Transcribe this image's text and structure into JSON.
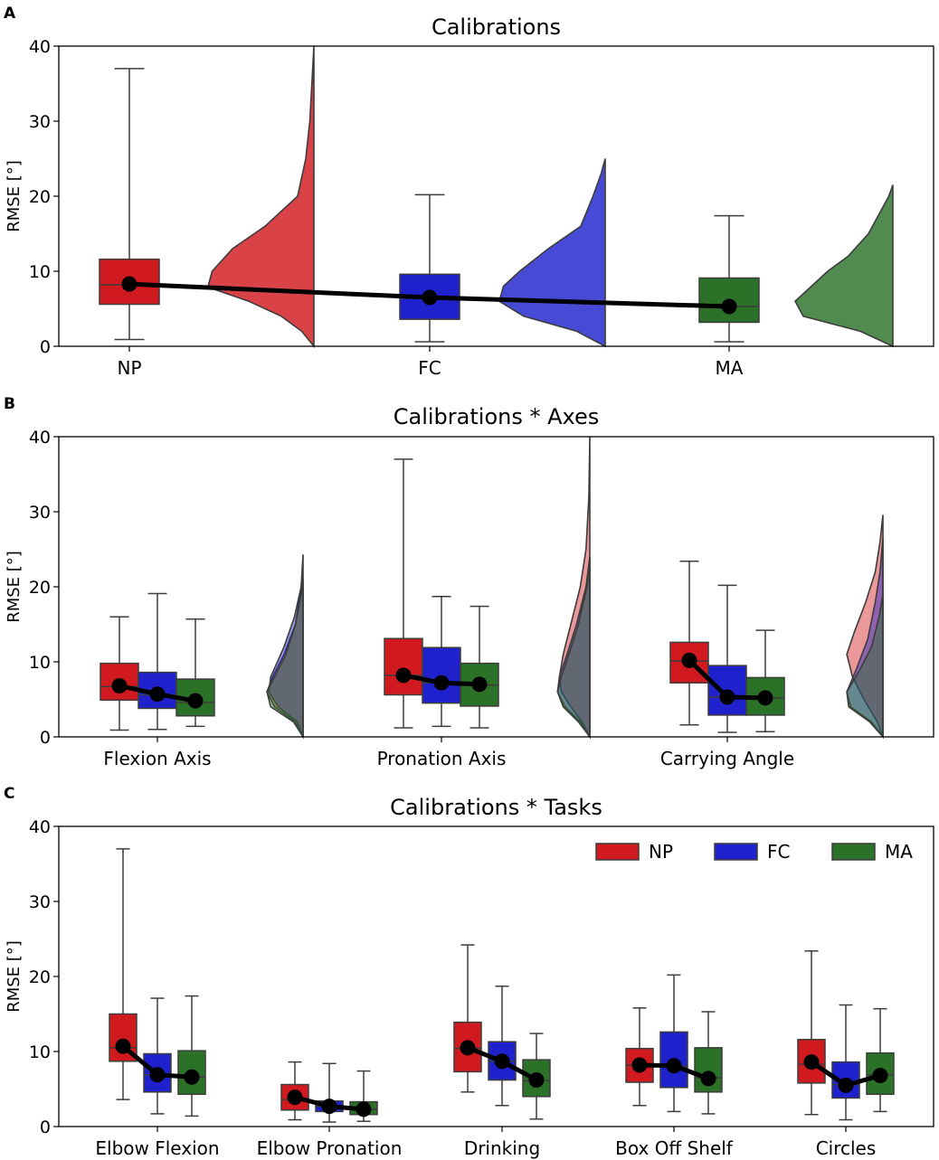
{
  "colors": {
    "NP": "#d11a1f",
    "FC": "#1f22cc",
    "MA": "#2b7128",
    "outline": "#3c3c3c",
    "mean_line": "#000000"
  },
  "chart_data": [
    {
      "panel": "A",
      "type": "box+violin",
      "title": "Calibrations",
      "ylabel": "RMSE [°]",
      "ylim": [
        0,
        40
      ],
      "yticks": [
        0,
        10,
        20,
        30,
        40
      ],
      "categories": [
        "NP",
        "FC",
        "MA"
      ],
      "groups": [
        {
          "category": "NP",
          "series": [
            {
              "name": "NP",
              "whislo": 0.9,
              "q1": 5.6,
              "median": 8.2,
              "q3": 11.6,
              "whishi": 37.0,
              "mean": 8.3
            }
          ],
          "violins": [
            {
              "name": "NP",
              "profile": [
                [
                  0,
                  0
                ],
                [
                  2,
                  3
                ],
                [
                  4,
                  8
                ],
                [
                  6,
                  16
                ],
                [
                  7.5,
                  24
                ],
                [
                  8,
                  26
                ],
                [
                  10,
                  25
                ],
                [
                  13,
                  20
                ],
                [
                  16,
                  12
                ],
                [
                  20,
                  4
                ],
                [
                  25,
                  2
                ],
                [
                  30,
                  1
                ],
                [
                  35,
                  0.5
                ],
                [
                  40,
                  0
                ]
              ]
            }
          ]
        },
        {
          "category": "FC",
          "series": [
            {
              "name": "FC",
              "whislo": 0.6,
              "q1": 3.6,
              "median": 6.4,
              "q3": 9.6,
              "whishi": 20.2,
              "mean": 6.5
            }
          ],
          "violins": [
            {
              "name": "FC",
              "profile": [
                [
                  0,
                  0
                ],
                [
                  2,
                  7
                ],
                [
                  4,
                  20
                ],
                [
                  6,
                  26
                ],
                [
                  8,
                  25
                ],
                [
                  10,
                  21
                ],
                [
                  13,
                  14
                ],
                [
                  16,
                  6
                ],
                [
                  20,
                  3
                ],
                [
                  23,
                  1
                ],
                [
                  25,
                  0
                ]
              ]
            }
          ]
        },
        {
          "category": "MA",
          "series": [
            {
              "name": "MA",
              "whislo": 0.6,
              "q1": 3.2,
              "median": 5.3,
              "q3": 9.1,
              "whishi": 17.4,
              "mean": 5.3
            }
          ],
          "violins": [
            {
              "name": "MA",
              "profile": [
                [
                  0,
                  0
                ],
                [
                  2,
                  8
                ],
                [
                  4,
                  22
                ],
                [
                  6,
                  24
                ],
                [
                  8,
                  20
                ],
                [
                  10,
                  16
                ],
                [
                  12,
                  11
                ],
                [
                  15,
                  6
                ],
                [
                  18,
                  3
                ],
                [
                  20,
                  1
                ],
                [
                  21.5,
                  0
                ]
              ]
            }
          ]
        }
      ]
    },
    {
      "panel": "B",
      "type": "box+violin",
      "title": "Calibrations * Axes",
      "ylabel": "RMSE [°]",
      "ylim": [
        0,
        40
      ],
      "yticks": [
        0,
        10,
        20,
        30,
        40
      ],
      "categories": [
        "Flexion Axis",
        "Pronation Axis",
        "Carrying Angle"
      ],
      "groups": [
        {
          "category": "Flexion Axis",
          "series": [
            {
              "name": "NP",
              "whislo": 0.9,
              "q1": 4.9,
              "median": 6.7,
              "q3": 9.8,
              "whishi": 16.0,
              "mean": 6.8
            },
            {
              "name": "FC",
              "whislo": 1.0,
              "q1": 3.8,
              "median": 5.6,
              "q3": 8.6,
              "whishi": 19.1,
              "mean": 5.7
            },
            {
              "name": "MA",
              "whislo": 1.4,
              "q1": 2.8,
              "median": 4.6,
              "q3": 7.7,
              "whishi": 15.7,
              "mean": 4.8
            }
          ],
          "violins": [
            {
              "name": "NP",
              "profile": [
                [
                  0,
                  0
                ],
                [
                  2,
                  8
                ],
                [
                  4,
                  30
                ],
                [
                  6,
                  38
                ],
                [
                  8,
                  32
                ],
                [
                  11,
                  20
                ],
                [
                  15,
                  8
                ],
                [
                  20,
                  2
                ],
                [
                  24.3,
                  0
                ]
              ]
            },
            {
              "name": "FC",
              "profile": [
                [
                  0,
                  0
                ],
                [
                  2,
                  6
                ],
                [
                  4,
                  26
                ],
                [
                  6,
                  36
                ],
                [
                  8,
                  34
                ],
                [
                  12,
                  20
                ],
                [
                  16,
                  9
                ],
                [
                  20,
                  2
                ],
                [
                  21,
                  0
                ]
              ]
            },
            {
              "name": "MA",
              "profile": [
                [
                  0,
                  0
                ],
                [
                  2,
                  10
                ],
                [
                  4,
                  34
                ],
                [
                  6,
                  38
                ],
                [
                  8,
                  30
                ],
                [
                  11,
                  18
                ],
                [
                  15,
                  8
                ],
                [
                  19,
                  2
                ],
                [
                  20.8,
                  0
                ]
              ]
            }
          ]
        },
        {
          "category": "Pronation Axis",
          "series": [
            {
              "name": "NP",
              "whislo": 1.2,
              "q1": 5.6,
              "median": 8.2,
              "q3": 13.1,
              "whishi": 37.0,
              "mean": 8.2
            },
            {
              "name": "FC",
              "whislo": 1.4,
              "q1": 4.5,
              "median": 7.2,
              "q3": 11.9,
              "whishi": 18.7,
              "mean": 7.2
            },
            {
              "name": "MA",
              "whislo": 1.2,
              "q1": 4.1,
              "median": 6.9,
              "q3": 9.8,
              "whishi": 17.4,
              "mean": 7.0
            }
          ],
          "violins": [
            {
              "name": "NP",
              "profile": [
                [
                  0,
                  0
                ],
                [
                  2,
                  8
                ],
                [
                  4,
                  20
                ],
                [
                  6,
                  30
                ],
                [
                  8,
                  32
                ],
                [
                  11,
                  28
                ],
                [
                  15,
                  20
                ],
                [
                  20,
                  10
                ],
                [
                  25,
                  4
                ],
                [
                  32,
                  1
                ],
                [
                  40,
                  0
                ]
              ]
            },
            {
              "name": "FC",
              "profile": [
                [
                  0,
                  0
                ],
                [
                  2,
                  10
                ],
                [
                  4,
                  26
                ],
                [
                  6,
                  34
                ],
                [
                  8,
                  32
                ],
                [
                  11,
                  24
                ],
                [
                  15,
                  14
                ],
                [
                  20,
                  4
                ],
                [
                  24,
                  0
                ]
              ]
            },
            {
              "name": "MA",
              "profile": [
                [
                  0,
                  0
                ],
                [
                  2,
                  12
                ],
                [
                  4,
                  28
                ],
                [
                  6,
                  34
                ],
                [
                  8,
                  30
                ],
                [
                  11,
                  22
                ],
                [
                  15,
                  12
                ],
                [
                  20,
                  3
                ],
                [
                  24,
                  0
                ]
              ]
            }
          ]
        },
        {
          "category": "Carrying Angle",
          "series": [
            {
              "name": "NP",
              "whislo": 1.6,
              "q1": 7.2,
              "median": 10.1,
              "q3": 12.6,
              "whishi": 23.4,
              "mean": 10.2
            },
            {
              "name": "FC",
              "whislo": 0.6,
              "q1": 2.9,
              "median": 5.3,
              "q3": 9.5,
              "whishi": 20.2,
              "mean": 5.3
            },
            {
              "name": "MA",
              "whislo": 0.7,
              "q1": 2.9,
              "median": 5.2,
              "q3": 7.9,
              "whishi": 14.2,
              "mean": 5.2
            }
          ],
          "violins": [
            {
              "name": "NP",
              "profile": [
                [
                  0,
                  0
                ],
                [
                  2,
                  6
                ],
                [
                  5,
                  20
                ],
                [
                  8,
                  32
                ],
                [
                  11,
                  38
                ],
                [
                  14,
                  30
                ],
                [
                  18,
                  18
                ],
                [
                  22,
                  8
                ],
                [
                  26,
                  3
                ],
                [
                  29.6,
                  0
                ]
              ]
            },
            {
              "name": "FC",
              "profile": [
                [
                  0,
                  0
                ],
                [
                  2,
                  12
                ],
                [
                  4,
                  34
                ],
                [
                  6,
                  38
                ],
                [
                  9,
                  28
                ],
                [
                  13,
                  16
                ],
                [
                  18,
                  8
                ],
                [
                  22,
                  3
                ],
                [
                  26.5,
                  0
                ]
              ]
            },
            {
              "name": "MA",
              "profile": [
                [
                  0,
                  0
                ],
                [
                  2,
                  14
                ],
                [
                  4,
                  36
                ],
                [
                  6,
                  38
                ],
                [
                  9,
                  24
                ],
                [
                  12,
                  12
                ],
                [
                  16,
                  4
                ],
                [
                  19,
                  0
                ]
              ]
            }
          ]
        }
      ]
    },
    {
      "panel": "C",
      "type": "box",
      "title": "Calibrations * Tasks",
      "ylabel": "RMSE [°]",
      "ylim": [
        0,
        40
      ],
      "yticks": [
        0,
        10,
        20,
        30,
        40
      ],
      "categories": [
        "Elbow Flexion",
        "Elbow Pronation",
        "Drinking",
        "Box Off Shelf",
        "Circles"
      ],
      "legend": {
        "loc": "upper right",
        "entries": [
          "NP",
          "FC",
          "MA"
        ]
      },
      "groups": [
        {
          "category": "Elbow Flexion",
          "series": [
            {
              "name": "NP",
              "whislo": 3.6,
              "q1": 8.7,
              "median": 10.5,
              "q3": 15.0,
              "whishi": 37.0,
              "mean": 10.7
            },
            {
              "name": "FC",
              "whislo": 1.7,
              "q1": 4.6,
              "median": 6.9,
              "q3": 9.7,
              "whishi": 17.1,
              "mean": 6.9
            },
            {
              "name": "MA",
              "whislo": 1.4,
              "q1": 4.3,
              "median": 6.6,
              "q3": 10.1,
              "whishi": 17.4,
              "mean": 6.6
            }
          ]
        },
        {
          "category": "Elbow Pronation",
          "series": [
            {
              "name": "NP",
              "whislo": 0.9,
              "q1": 2.2,
              "median": 3.6,
              "q3": 5.6,
              "whishi": 8.6,
              "mean": 3.9
            },
            {
              "name": "FC",
              "whislo": 0.6,
              "q1": 2.0,
              "median": 2.7,
              "q3": 3.4,
              "whishi": 8.4,
              "mean": 2.7
            },
            {
              "name": "MA",
              "whislo": 0.7,
              "q1": 1.6,
              "median": 2.3,
              "q3": 3.3,
              "whishi": 7.4,
              "mean": 2.3
            }
          ]
        },
        {
          "category": "Drinking",
          "series": [
            {
              "name": "NP",
              "whislo": 4.6,
              "q1": 7.3,
              "median": 10.4,
              "q3": 13.9,
              "whishi": 24.2,
              "mean": 10.5
            },
            {
              "name": "FC",
              "whislo": 2.8,
              "q1": 6.2,
              "median": 8.7,
              "q3": 11.3,
              "whishi": 18.7,
              "mean": 8.7
            },
            {
              "name": "MA",
              "whislo": 1.0,
              "q1": 4.0,
              "median": 6.1,
              "q3": 8.9,
              "whishi": 12.4,
              "mean": 6.2
            }
          ]
        },
        {
          "category": "Box Off Shelf",
          "series": [
            {
              "name": "NP",
              "whislo": 2.8,
              "q1": 5.9,
              "median": 8.2,
              "q3": 10.4,
              "whishi": 15.8,
              "mean": 8.2
            },
            {
              "name": "FC",
              "whislo": 2.0,
              "q1": 5.2,
              "median": 8.0,
              "q3": 12.6,
              "whishi": 20.2,
              "mean": 8.1
            },
            {
              "name": "MA",
              "whislo": 1.7,
              "q1": 4.6,
              "median": 6.5,
              "q3": 10.5,
              "whishi": 15.3,
              "mean": 6.4
            }
          ]
        },
        {
          "category": "Circles",
          "series": [
            {
              "name": "NP",
              "whislo": 1.6,
              "q1": 5.8,
              "median": 8.3,
              "q3": 11.6,
              "whishi": 23.4,
              "mean": 8.6
            },
            {
              "name": "FC",
              "whislo": 0.9,
              "q1": 3.8,
              "median": 5.6,
              "q3": 8.6,
              "whishi": 16.2,
              "mean": 5.5
            },
            {
              "name": "MA",
              "whislo": 2.0,
              "q1": 4.3,
              "median": 6.9,
              "q3": 9.8,
              "whishi": 15.7,
              "mean": 6.8
            }
          ]
        }
      ]
    }
  ]
}
